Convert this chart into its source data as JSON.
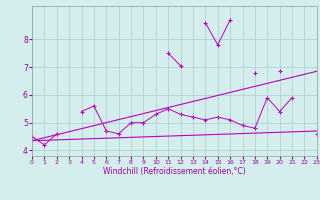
{
  "x": [
    0,
    1,
    2,
    3,
    4,
    5,
    6,
    7,
    8,
    9,
    10,
    11,
    12,
    13,
    14,
    15,
    16,
    17,
    18,
    19,
    20,
    21,
    22,
    23
  ],
  "line1": [
    4.5,
    4.2,
    4.6,
    null,
    5.4,
    5.6,
    4.7,
    4.6,
    5.0,
    5.0,
    5.3,
    5.5,
    5.3,
    5.2,
    5.1,
    5.2,
    5.1,
    4.9,
    4.8,
    5.9,
    5.4,
    5.9,
    null,
    4.6
  ],
  "line2": [
    null,
    null,
    null,
    null,
    null,
    null,
    null,
    null,
    null,
    null,
    null,
    7.5,
    7.05,
    null,
    8.6,
    7.8,
    8.7,
    null,
    6.8,
    null,
    6.85,
    null,
    null,
    null
  ],
  "line3_x": [
    0,
    23
  ],
  "line3_y": [
    4.35,
    6.85
  ],
  "line4_x": [
    0,
    23
  ],
  "line4_y": [
    4.35,
    4.7
  ],
  "background_color": "#d4eeee",
  "grid_color": "#aacccc",
  "line_color": "#bb00bb",
  "xlabel": "Windchill (Refroidissement éolien,°C)",
  "ylim": [
    3.8,
    9.2
  ],
  "xlim": [
    0,
    23
  ],
  "yticks": [
    4,
    5,
    6,
    7,
    8
  ],
  "xticks": [
    0,
    1,
    2,
    3,
    4,
    5,
    6,
    7,
    8,
    9,
    10,
    11,
    12,
    13,
    14,
    15,
    16,
    17,
    18,
    19,
    20,
    21,
    22,
    23
  ],
  "tick_color": "#990099",
  "xlabel_fontsize": 5.5,
  "tick_fontsize_x": 4.5,
  "tick_fontsize_y": 5.5
}
